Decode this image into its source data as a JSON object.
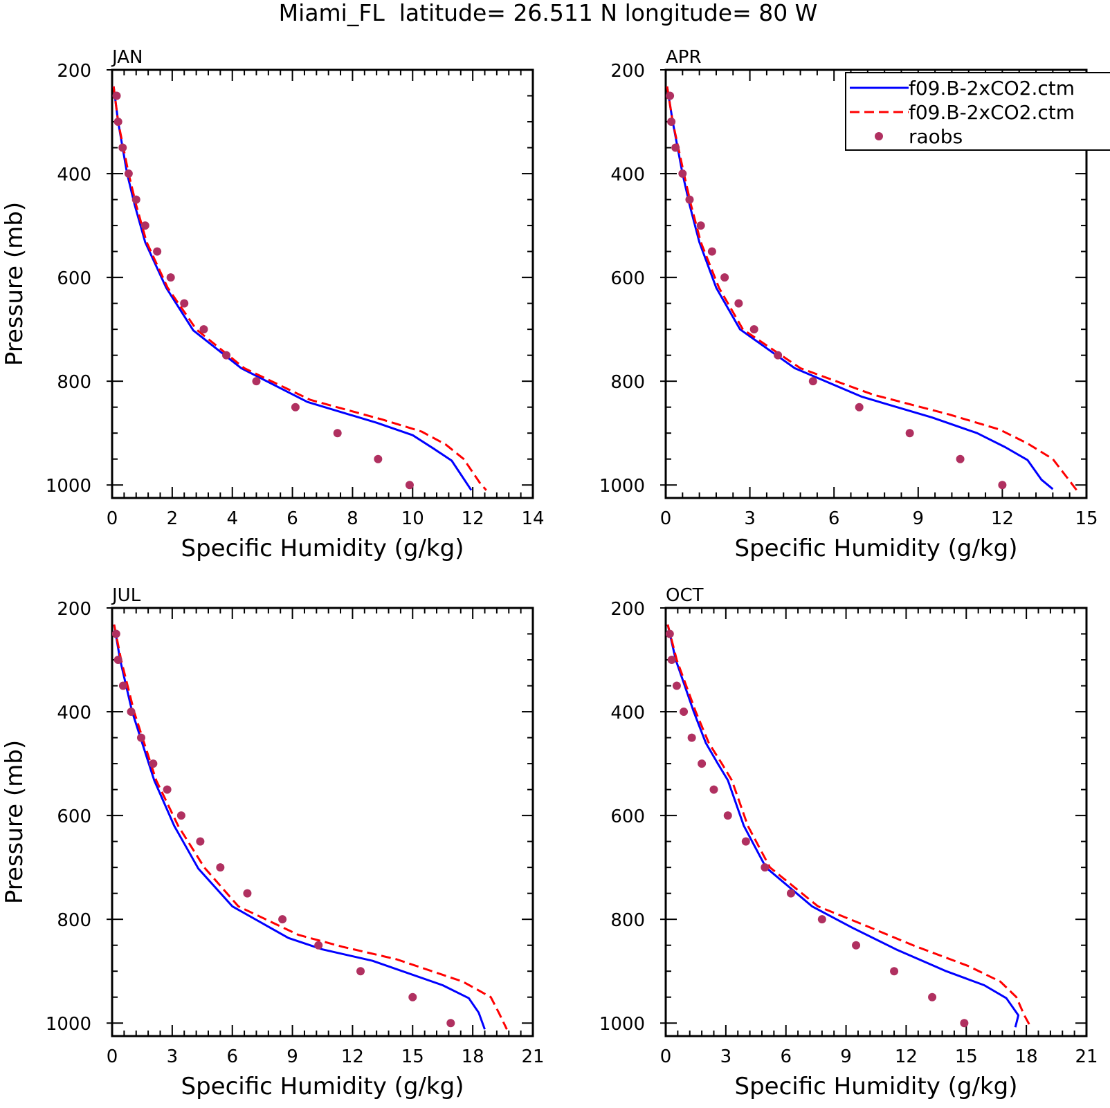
{
  "figure": {
    "title": "Miami_FL  latitude= 26.511 N longitude= 80 W"
  },
  "legend": {
    "entries": [
      {
        "label": "f09.B-2xCO2.ctm",
        "style": "solid",
        "color": "#0000ff"
      },
      {
        "label": "f09.B-2xCO2.ctm",
        "style": "dashed",
        "color": "#ff0000"
      },
      {
        "label": "raobs",
        "style": "marker",
        "color": "#b03060"
      }
    ],
    "placement": "top-right of APR panel"
  },
  "colors": {
    "series_solid": "#0000ff",
    "series_dashed": "#ff0000",
    "raobs_marker": "#b03060",
    "axes": "#000000"
  },
  "chart_data": [
    {
      "type": "line",
      "title": "JAN",
      "xlabel": "Specific Humidity (g/kg)",
      "ylabel": "Pressure (mb)",
      "xlim": [
        0,
        14
      ],
      "ylim": [
        1025,
        200
      ],
      "y_inverted": true,
      "xticks": [
        0,
        2,
        4,
        6,
        8,
        10,
        12,
        14
      ],
      "yticks": [
        200,
        400,
        600,
        800,
        1000
      ],
      "series": [
        {
          "name": "f09.B-2xCO2.ctm",
          "style": "solid",
          "x": [
            0.05,
            0.2,
            0.5,
            0.75,
            1.1,
            1.8,
            2.7,
            4.3,
            6.5,
            8.8,
            10.0,
            10.7,
            11.3,
            11.95
          ],
          "y": [
            232,
            300,
            400,
            460,
            532,
            620,
            702,
            775,
            840,
            880,
            904,
            930,
            953,
            1010
          ]
        },
        {
          "name": "f09.B-2xCO2.ctm",
          "style": "dashed",
          "x": [
            0.05,
            0.2,
            0.55,
            0.8,
            1.15,
            1.85,
            2.8,
            4.4,
            6.6,
            9.0,
            10.3,
            11.1,
            11.7,
            12.25,
            12.45
          ],
          "y": [
            232,
            300,
            400,
            460,
            532,
            620,
            700,
            775,
            836,
            874,
            897,
            922,
            950,
            997,
            1010
          ]
        },
        {
          "name": "raobs",
          "style": "marker",
          "x": [
            0.15,
            0.2,
            0.35,
            0.55,
            0.8,
            1.1,
            1.5,
            1.95,
            2.4,
            3.05,
            3.8,
            4.8,
            6.1,
            7.5,
            8.85,
            9.9
          ],
          "y": [
            250,
            300,
            350,
            400,
            450,
            500,
            550,
            600,
            650,
            700,
            750,
            800,
            850,
            900,
            950,
            1000
          ]
        }
      ]
    },
    {
      "type": "line",
      "title": "APR",
      "xlabel": "Specific Humidity (g/kg)",
      "ylabel": "",
      "xlim": [
        0,
        15
      ],
      "ylim": [
        1025,
        200
      ],
      "y_inverted": true,
      "xticks": [
        0,
        3,
        6,
        9,
        12,
        15
      ],
      "yticks": [
        200,
        400,
        600,
        800,
        1000
      ],
      "series": [
        {
          "name": "f09.B-2xCO2.ctm",
          "style": "solid",
          "x": [
            0.05,
            0.25,
            0.6,
            0.85,
            1.2,
            1.8,
            2.65,
            4.6,
            7.0,
            9.5,
            11.1,
            12.1,
            12.9,
            13.4,
            13.8
          ],
          "y": [
            232,
            300,
            400,
            460,
            532,
            620,
            700,
            775,
            830,
            870,
            900,
            927,
            952,
            990,
            1008
          ]
        },
        {
          "name": "f09.B-2xCO2.ctm",
          "style": "dashed",
          "x": [
            0.05,
            0.25,
            0.65,
            0.9,
            1.25,
            1.9,
            2.75,
            4.8,
            7.4,
            10.1,
            11.9,
            12.9,
            13.8,
            14.3,
            14.65
          ],
          "y": [
            232,
            300,
            400,
            460,
            532,
            620,
            700,
            775,
            826,
            864,
            893,
            920,
            950,
            985,
            1010
          ]
        },
        {
          "name": "raobs",
          "style": "marker",
          "x": [
            0.15,
            0.2,
            0.35,
            0.6,
            0.85,
            1.25,
            1.65,
            2.1,
            2.6,
            3.15,
            4.0,
            5.25,
            6.9,
            8.7,
            10.5,
            12.0
          ],
          "y": [
            250,
            300,
            350,
            400,
            450,
            500,
            550,
            600,
            650,
            700,
            750,
            800,
            850,
            900,
            950,
            1000
          ]
        }
      ]
    },
    {
      "type": "line",
      "title": "JUL",
      "xlabel": "Specific Humidity (g/kg)",
      "ylabel": "Pressure (mb)",
      "xlim": [
        0,
        21
      ],
      "ylim": [
        1025,
        200
      ],
      "y_inverted": true,
      "xticks": [
        0,
        3,
        6,
        9,
        12,
        15,
        18,
        21
      ],
      "yticks": [
        200,
        400,
        600,
        800,
        1000
      ],
      "series": [
        {
          "name": "f09.B-2xCO2.ctm",
          "style": "solid",
          "x": [
            0.1,
            0.4,
            1.0,
            1.5,
            2.1,
            3.1,
            4.3,
            6.0,
            8.8,
            10.5,
            13.0,
            16.5,
            17.8,
            18.3,
            18.6
          ],
          "y": [
            232,
            300,
            400,
            460,
            532,
            620,
            702,
            775,
            836,
            858,
            880,
            927,
            952,
            980,
            1012
          ]
        },
        {
          "name": "f09.B-2xCO2.ctm",
          "style": "dashed",
          "x": [
            0.1,
            0.45,
            1.1,
            1.6,
            2.2,
            3.3,
            4.6,
            6.3,
            9.3,
            11.5,
            14.2,
            17.5,
            18.9,
            19.3,
            19.7
          ],
          "y": [
            232,
            300,
            400,
            460,
            532,
            620,
            700,
            775,
            830,
            853,
            877,
            920,
            950,
            980,
            1012
          ]
        },
        {
          "name": "raobs",
          "style": "marker",
          "x": [
            0.2,
            0.3,
            0.55,
            0.95,
            1.45,
            2.05,
            2.75,
            3.45,
            4.4,
            5.4,
            6.75,
            8.5,
            10.3,
            12.4,
            15.0,
            16.9
          ],
          "y": [
            250,
            300,
            350,
            400,
            450,
            500,
            550,
            600,
            650,
            700,
            750,
            800,
            850,
            900,
            950,
            1000
          ]
        }
      ]
    },
    {
      "type": "line",
      "title": "OCT",
      "xlabel": "Specific Humidity (g/kg)",
      "ylabel": "",
      "xlim": [
        0,
        21
      ],
      "ylim": [
        1025,
        200
      ],
      "y_inverted": true,
      "xticks": [
        0,
        3,
        6,
        9,
        12,
        15,
        18,
        21
      ],
      "yticks": [
        200,
        400,
        600,
        800,
        1000
      ],
      "series": [
        {
          "name": "f09.B-2xCO2.ctm",
          "style": "solid",
          "x": [
            0.1,
            0.5,
            1.4,
            2.0,
            2.6,
            3.1,
            3.9,
            5.0,
            7.3,
            9.3,
            11.5,
            14.0,
            15.9,
            17.0,
            17.6,
            17.45
          ],
          "y": [
            232,
            300,
            400,
            460,
            500,
            532,
            620,
            700,
            775,
            816,
            858,
            900,
            927,
            952,
            985,
            1008
          ]
        },
        {
          "name": "f09.B-2xCO2.ctm",
          "style": "dashed",
          "x": [
            0.1,
            0.55,
            1.5,
            2.15,
            2.8,
            3.3,
            4.1,
            5.2,
            7.6,
            9.9,
            12.4,
            15.1,
            16.7,
            17.5,
            17.9,
            18.25
          ],
          "y": [
            232,
            300,
            400,
            460,
            500,
            532,
            620,
            700,
            775,
            811,
            851,
            890,
            920,
            950,
            985,
            1010
          ]
        },
        {
          "name": "raobs",
          "style": "marker",
          "x": [
            0.2,
            0.3,
            0.55,
            0.9,
            1.3,
            1.8,
            2.4,
            3.1,
            4.0,
            4.95,
            6.25,
            7.8,
            9.5,
            11.4,
            13.3,
            14.9
          ],
          "y": [
            250,
            300,
            350,
            400,
            450,
            500,
            550,
            600,
            650,
            700,
            750,
            800,
            850,
            900,
            950,
            1000
          ]
        }
      ]
    }
  ]
}
